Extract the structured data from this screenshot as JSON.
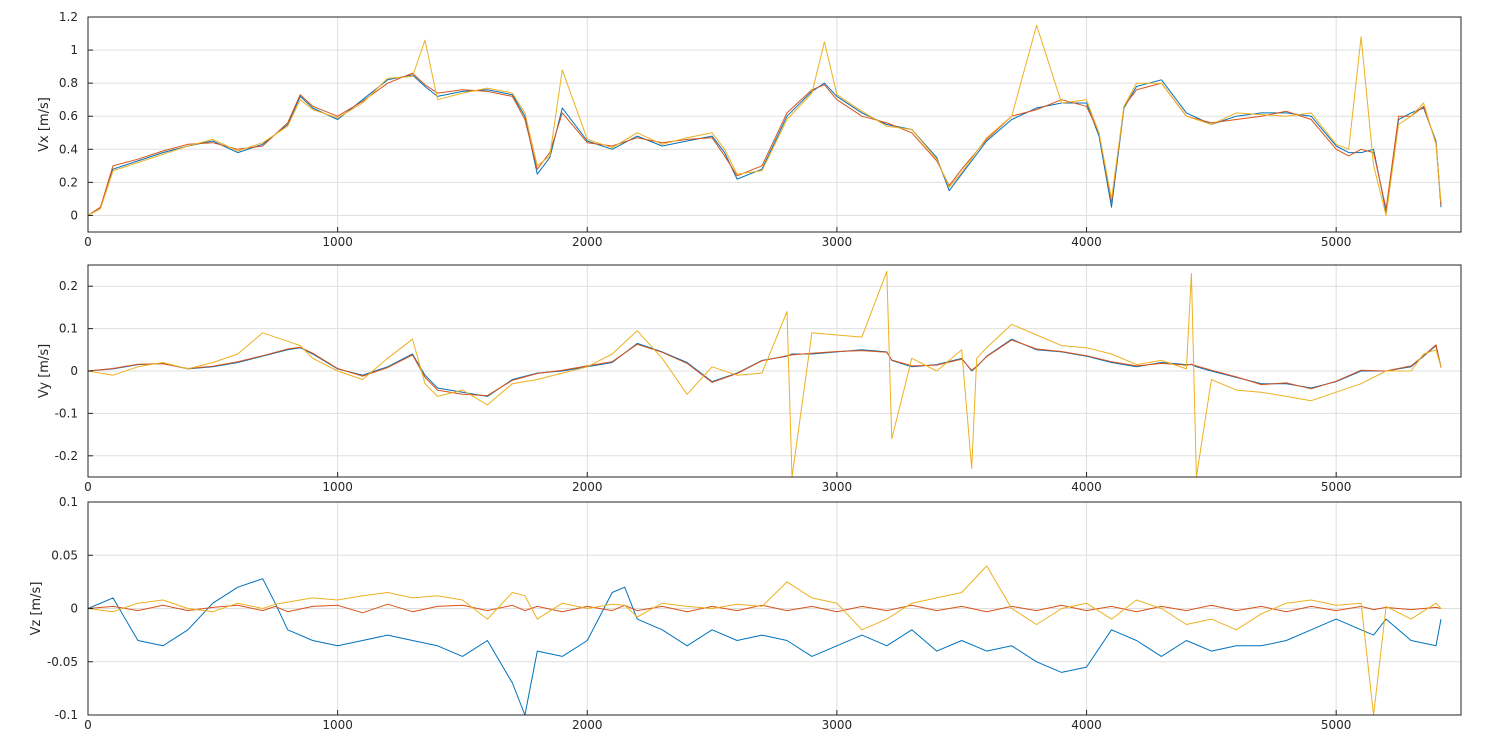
{
  "figure": {
    "background": "#ffffff"
  },
  "colors": {
    "series1": "#0072BD",
    "series2": "#D95319",
    "series3": "#EDB120"
  },
  "chart_data": [
    {
      "type": "line",
      "ylabel": "Vx [m/s]",
      "xlim": [
        0,
        5500
      ],
      "ylim": [
        -0.1,
        1.2
      ],
      "xticks": [
        0,
        1000,
        2000,
        3000,
        4000,
        5000
      ],
      "yticks": [
        0,
        0.2,
        0.4,
        0.6,
        0.8,
        1,
        1.2
      ],
      "xticklabels": [
        "0",
        "1000",
        "2000",
        "3000",
        "4000",
        "5000"
      ],
      "yticklabels": [
        "0",
        "0.2",
        "0.4",
        "0.6",
        "0.8",
        "1",
        "1.2"
      ],
      "grid": true,
      "x": [
        0,
        50,
        100,
        200,
        300,
        400,
        500,
        600,
        700,
        800,
        850,
        900,
        1000,
        1100,
        1200,
        1300,
        1350,
        1400,
        1500,
        1600,
        1700,
        1750,
        1800,
        1850,
        1900,
        2000,
        2100,
        2200,
        2300,
        2400,
        2500,
        2550,
        2600,
        2700,
        2800,
        2900,
        2950,
        3000,
        3100,
        3200,
        3300,
        3400,
        3450,
        3500,
        3600,
        3700,
        3800,
        3900,
        4000,
        4050,
        4100,
        4150,
        4200,
        4300,
        4400,
        4500,
        4600,
        4700,
        4800,
        4900,
        5000,
        5050,
        5100,
        5150,
        5200,
        5250,
        5300,
        5350,
        5400,
        5420
      ],
      "series": [
        {
          "values": [
            0,
            0.05,
            0.28,
            0.33,
            0.38,
            0.42,
            0.45,
            0.38,
            0.43,
            0.55,
            0.72,
            0.65,
            0.58,
            0.7,
            0.82,
            0.85,
            0.78,
            0.72,
            0.75,
            0.76,
            0.73,
            0.6,
            0.25,
            0.35,
            0.65,
            0.45,
            0.4,
            0.48,
            0.42,
            0.45,
            0.48,
            0.38,
            0.22,
            0.28,
            0.6,
            0.75,
            0.8,
            0.72,
            0.62,
            0.55,
            0.52,
            0.35,
            0.15,
            0.25,
            0.45,
            0.58,
            0.65,
            0.68,
            0.68,
            0.48,
            0.05,
            0.65,
            0.78,
            0.82,
            0.62,
            0.55,
            0.6,
            0.62,
            0.62,
            0.6,
            0.42,
            0.38,
            0.38,
            0.4,
            0.02,
            0.58,
            0.62,
            0.65,
            0.45,
            0.05
          ]
        },
        {
          "values": [
            0,
            0.05,
            0.3,
            0.34,
            0.39,
            0.43,
            0.44,
            0.4,
            0.42,
            0.56,
            0.73,
            0.66,
            0.6,
            0.69,
            0.8,
            0.86,
            0.79,
            0.74,
            0.76,
            0.75,
            0.72,
            0.58,
            0.28,
            0.38,
            0.62,
            0.44,
            0.42,
            0.47,
            0.44,
            0.46,
            0.47,
            0.36,
            0.24,
            0.3,
            0.62,
            0.76,
            0.79,
            0.7,
            0.6,
            0.56,
            0.5,
            0.33,
            0.18,
            0.28,
            0.46,
            0.6,
            0.64,
            0.7,
            0.66,
            0.5,
            0.08,
            0.66,
            0.76,
            0.8,
            0.6,
            0.56,
            0.58,
            0.6,
            0.63,
            0.58,
            0.4,
            0.36,
            0.4,
            0.38,
            0.04,
            0.6,
            0.6,
            0.66,
            0.44,
            0.06
          ]
        },
        {
          "values": [
            0,
            0.04,
            0.27,
            0.32,
            0.37,
            0.42,
            0.46,
            0.39,
            0.44,
            0.54,
            0.7,
            0.64,
            0.59,
            0.68,
            0.83,
            0.84,
            1.06,
            0.7,
            0.74,
            0.77,
            0.74,
            0.62,
            0.3,
            0.36,
            0.88,
            0.46,
            0.41,
            0.5,
            0.43,
            0.47,
            0.5,
            0.4,
            0.25,
            0.27,
            0.58,
            0.74,
            1.05,
            0.73,
            0.63,
            0.54,
            0.52,
            0.34,
            0.17,
            0.26,
            0.47,
            0.6,
            1.15,
            0.68,
            0.7,
            0.5,
            0.1,
            0.66,
            0.8,
            0.8,
            0.6,
            0.55,
            0.62,
            0.61,
            0.6,
            0.62,
            0.43,
            0.4,
            1.08,
            0.3,
            0,
            0.55,
            0.6,
            0.68,
            0.43,
            0.08
          ]
        }
      ]
    },
    {
      "type": "line",
      "ylabel": "Vy [m/s]",
      "xlim": [
        0,
        5500
      ],
      "ylim": [
        -0.25,
        0.25
      ],
      "xticks": [
        0,
        1000,
        2000,
        3000,
        4000,
        5000
      ],
      "yticks": [
        -0.2,
        -0.1,
        0,
        0.1,
        0.2
      ],
      "xticklabels": [
        "0",
        "1000",
        "2000",
        "3000",
        "4000",
        "5000"
      ],
      "yticklabels": [
        "-0.2",
        "-0.1",
        "0",
        "0.1",
        "0.2"
      ],
      "grid": true,
      "x": [
        0,
        100,
        200,
        300,
        400,
        500,
        600,
        700,
        800,
        850,
        900,
        1000,
        1100,
        1200,
        1300,
        1350,
        1400,
        1500,
        1600,
        1700,
        1800,
        1900,
        2000,
        2100,
        2200,
        2300,
        2400,
        2500,
        2600,
        2700,
        2800,
        2820,
        2900,
        3000,
        3100,
        3200,
        3220,
        3300,
        3400,
        3500,
        3540,
        3560,
        3600,
        3700,
        3800,
        3900,
        4000,
        4100,
        4200,
        4300,
        4400,
        4420,
        4440,
        4500,
        4600,
        4700,
        4800,
        4900,
        5000,
        5100,
        5200,
        5300,
        5350,
        5400,
        5420
      ],
      "series": [
        {
          "values": [
            0,
            0.005,
            0.015,
            0.018,
            0.005,
            0.01,
            0.02,
            0.035,
            0.05,
            0.055,
            0.04,
            0.005,
            -0.01,
            0.01,
            0.04,
            -0.01,
            -0.04,
            -0.05,
            -0.06,
            -0.02,
            -0.005,
            0.0,
            0.01,
            0.02,
            0.065,
            0.045,
            0.02,
            -0.025,
            -0.005,
            0.025,
            0.035,
            0.04,
            0.04,
            0.045,
            0.05,
            0.045,
            0.025,
            0.01,
            0.015,
            0.03,
            0.0,
            0.01,
            0.035,
            0.075,
            0.05,
            0.045,
            0.035,
            0.02,
            0.01,
            0.02,
            0.015,
            0.015,
            0.01,
            0.0,
            -0.015,
            -0.03,
            -0.03,
            -0.04,
            -0.025,
            0.0,
            0.0,
            0.01,
            0.035,
            0.06,
            0.01
          ]
        },
        {
          "values": [
            0,
            0.006,
            0.016,
            0.017,
            0.006,
            0.011,
            0.022,
            0.036,
            0.052,
            0.056,
            0.042,
            0.006,
            -0.012,
            0.008,
            0.038,
            -0.015,
            -0.045,
            -0.055,
            -0.058,
            -0.022,
            -0.006,
            0.002,
            0.012,
            0.022,
            0.063,
            0.044,
            0.018,
            -0.027,
            -0.006,
            0.024,
            0.036,
            0.038,
            0.042,
            0.046,
            0.048,
            0.044,
            0.026,
            0.012,
            0.014,
            0.028,
            0.002,
            0.011,
            0.034,
            0.073,
            0.052,
            0.046,
            0.036,
            0.022,
            0.012,
            0.018,
            0.014,
            0.016,
            0.012,
            0.002,
            -0.014,
            -0.032,
            -0.028,
            -0.042,
            -0.024,
            0.002,
            0.0,
            0.012,
            0.036,
            0.062,
            0.008
          ]
        },
        {
          "values": [
            0,
            -0.01,
            0.01,
            0.02,
            0.005,
            0.02,
            0.04,
            0.09,
            0.07,
            0.06,
            0.03,
            0.0,
            -0.02,
            0.03,
            0.075,
            -0.03,
            -0.06,
            -0.045,
            -0.08,
            -0.03,
            -0.02,
            -0.005,
            0.01,
            0.04,
            0.095,
            0.03,
            -0.055,
            0.01,
            -0.01,
            -0.005,
            0.14,
            -0.25,
            0.09,
            0.085,
            0.08,
            0.235,
            -0.16,
            0.03,
            0.0,
            0.05,
            -0.23,
            0.03,
            0.055,
            0.11,
            0.085,
            0.06,
            0.055,
            0.04,
            0.015,
            0.025,
            0.005,
            0.23,
            -0.25,
            -0.02,
            -0.045,
            -0.05,
            -0.06,
            -0.07,
            -0.05,
            -0.03,
            0.0,
            0.0,
            0.04,
            0.05,
            0.01
          ]
        }
      ]
    },
    {
      "type": "line",
      "ylabel": "Vz [m/s]",
      "xlim": [
        0,
        5500
      ],
      "ylim": [
        -0.1,
        0.1
      ],
      "xticks": [
        0,
        1000,
        2000,
        3000,
        4000,
        5000
      ],
      "yticks": [
        -0.1,
        -0.05,
        0,
        0.05,
        0.1
      ],
      "xticklabels": [
        "0",
        "1000",
        "2000",
        "3000",
        "4000",
        "5000"
      ],
      "yticklabels": [
        "-0.1",
        "-0.05",
        "0",
        "0.05",
        "0.1"
      ],
      "grid": true,
      "x": [
        0,
        100,
        200,
        300,
        400,
        500,
        600,
        700,
        750,
        800,
        900,
        1000,
        1100,
        1200,
        1300,
        1400,
        1500,
        1600,
        1700,
        1750,
        1800,
        1900,
        2000,
        2100,
        2150,
        2200,
        2300,
        2400,
        2500,
        2600,
        2700,
        2800,
        2900,
        3000,
        3100,
        3200,
        3300,
        3400,
        3500,
        3600,
        3700,
        3800,
        3900,
        4000,
        4100,
        4200,
        4300,
        4400,
        4500,
        4600,
        4700,
        4800,
        4900,
        5000,
        5100,
        5150,
        5200,
        5300,
        5400,
        5420
      ],
      "series": [
        {
          "values": [
            0,
            0.01,
            -0.03,
            -0.035,
            -0.02,
            0.005,
            0.02,
            0.028,
            0.005,
            -0.02,
            -0.03,
            -0.035,
            -0.03,
            -0.025,
            -0.03,
            -0.035,
            -0.045,
            -0.03,
            -0.07,
            -0.1,
            -0.04,
            -0.045,
            -0.03,
            0.015,
            0.02,
            -0.01,
            -0.02,
            -0.035,
            -0.02,
            -0.03,
            -0.025,
            -0.03,
            -0.045,
            -0.035,
            -0.025,
            -0.035,
            -0.02,
            -0.04,
            -0.03,
            -0.04,
            -0.035,
            -0.05,
            -0.06,
            -0.055,
            -0.02,
            -0.03,
            -0.045,
            -0.03,
            -0.04,
            -0.035,
            -0.035,
            -0.03,
            -0.02,
            -0.01,
            -0.02,
            -0.025,
            -0.01,
            -0.03,
            -0.035,
            -0.01
          ]
        },
        {
          "values": [
            0,
            0.002,
            -0.002,
            0.003,
            -0.002,
            0.001,
            0.003,
            -0.002,
            0.002,
            -0.003,
            0.002,
            0.003,
            -0.004,
            0.004,
            -0.003,
            0.002,
            0.003,
            -0.002,
            0.003,
            -0.002,
            0.002,
            -0.003,
            0.002,
            -0.002,
            0.003,
            -0.002,
            0.002,
            -0.003,
            0.002,
            -0.002,
            0.003,
            -0.002,
            0.002,
            -0.003,
            0.002,
            -0.002,
            0.003,
            -0.002,
            0.002,
            -0.003,
            0.002,
            -0.002,
            0.003,
            -0.002,
            0.002,
            -0.003,
            0.002,
            -0.002,
            0.003,
            -0.002,
            0.002,
            -0.003,
            0.002,
            -0.002,
            0.002,
            -0.001,
            0.001,
            -0.001,
            0.001,
            0
          ]
        },
        {
          "values": [
            0,
            -0.003,
            0.005,
            0.008,
            0.0,
            -0.003,
            0.005,
            0.0,
            0.004,
            0.006,
            0.01,
            0.008,
            0.012,
            0.015,
            0.01,
            0.012,
            0.008,
            -0.01,
            0.015,
            0.012,
            -0.01,
            0.005,
            0.0,
            0.004,
            0.003,
            -0.008,
            0.005,
            0.002,
            0.0,
            0.004,
            0.002,
            0.025,
            0.01,
            0.005,
            -0.02,
            -0.01,
            0.005,
            0.01,
            0.015,
            0.04,
            0.0,
            -0.015,
            0.0,
            0.005,
            -0.01,
            0.008,
            0.0,
            -0.015,
            -0.01,
            -0.02,
            -0.005,
            0.005,
            0.008,
            0.003,
            0.005,
            -0.1,
            0.002,
            -0.01,
            0.005,
            0
          ]
        }
      ]
    }
  ]
}
